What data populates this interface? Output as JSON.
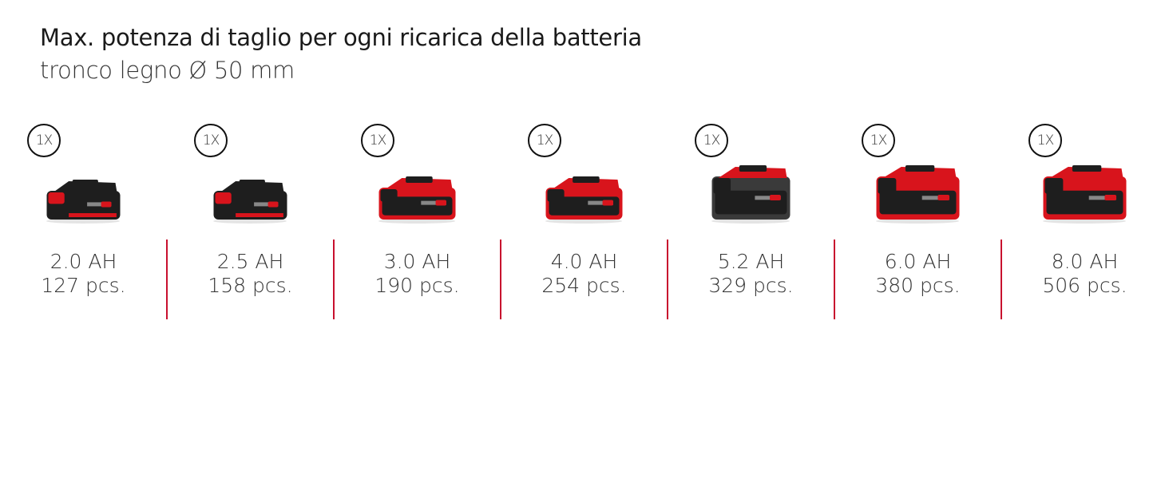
{
  "header": {
    "title": "Max. potenza di taglio per ogni ricarica della batteria",
    "subtitle": "tronco legno Ø 50 mm"
  },
  "colors": {
    "accent": "#c8102e",
    "battery_red": "#d8141c",
    "battery_black": "#1e1e1e"
  },
  "batteries": [
    {
      "qty": "1X",
      "capacity": "2.0 AH",
      "pieces": "127 pcs.",
      "style": "black-small"
    },
    {
      "qty": "1X",
      "capacity": "2.5 AH",
      "pieces": "158 pcs.",
      "style": "black-small"
    },
    {
      "qty": "1X",
      "capacity": "3.0 AH",
      "pieces": "190 pcs.",
      "style": "red-medium"
    },
    {
      "qty": "1X",
      "capacity": "4.0 AH",
      "pieces": "254 pcs.",
      "style": "red-medium"
    },
    {
      "qty": "1X",
      "capacity": "5.2 AH",
      "pieces": "329 pcs.",
      "style": "grey-large"
    },
    {
      "qty": "1X",
      "capacity": "6.0 AH",
      "pieces": "380 pcs.",
      "style": "red-large"
    },
    {
      "qty": "1X",
      "capacity": "8.0 AH",
      "pieces": "506 pcs.",
      "style": "red-large"
    }
  ]
}
